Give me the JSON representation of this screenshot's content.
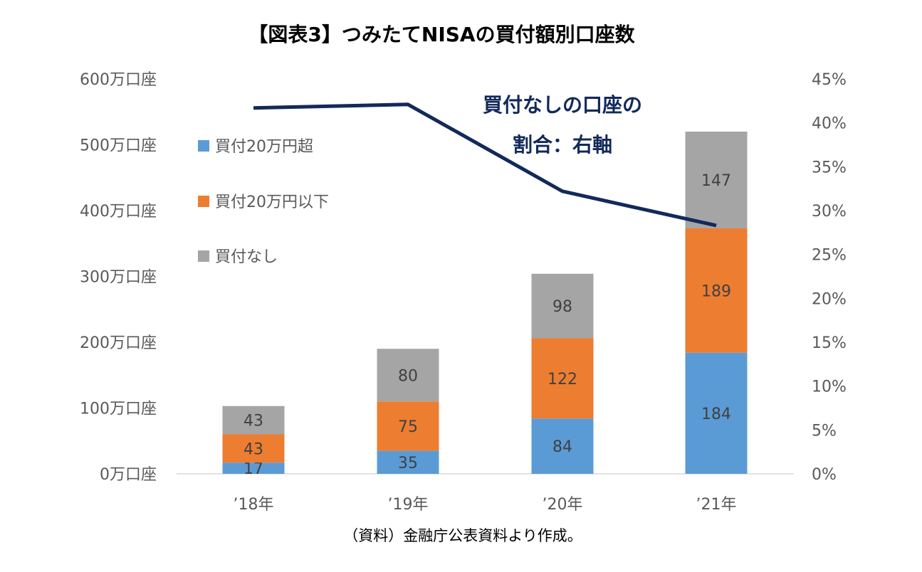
{
  "chart_data": {
    "type": "bar",
    "stacked": true,
    "title": "【図表3】つみたてNISAの買付額別口座数",
    "categories": [
      "’18年",
      "’19年",
      "’20年",
      "’21年"
    ],
    "series": [
      {
        "name": "買付20万円超",
        "values": [
          17,
          35,
          84,
          184
        ],
        "color": "#5b9bd5"
      },
      {
        "name": "買付20万円以下",
        "values": [
          43,
          75,
          122,
          189
        ],
        "color": "#ed7d31"
      },
      {
        "name": "買付なし",
        "values": [
          43,
          80,
          98,
          147
        ],
        "color": "#a5a5a5"
      }
    ],
    "line_series": {
      "axis": "right",
      "values": [
        41.7,
        42.1,
        32.2,
        28.3
      ],
      "color": "#12295a",
      "annotation": [
        "買付なしの口座の",
        "割合：右軸"
      ]
    },
    "left_axis": {
      "ylim": [
        0,
        600
      ],
      "ticks": [
        0,
        100,
        200,
        300,
        400,
        500,
        600
      ],
      "tick_labels": [
        "0万口座",
        "100万口座",
        "200万口座",
        "300万口座",
        "400万口座",
        "500万口座",
        "600万口座"
      ]
    },
    "right_axis": {
      "ylim": [
        0,
        45
      ],
      "ticks": [
        0,
        5,
        10,
        15,
        20,
        25,
        30,
        35,
        40,
        45
      ],
      "tick_labels": [
        "0%",
        "5%",
        "10%",
        "15%",
        "20%",
        "25%",
        "30%",
        "35%",
        "40%",
        "45%"
      ]
    },
    "legend_placement": "top-left",
    "grid": false,
    "source": "（資料）金融庁公表資料より作成。"
  }
}
